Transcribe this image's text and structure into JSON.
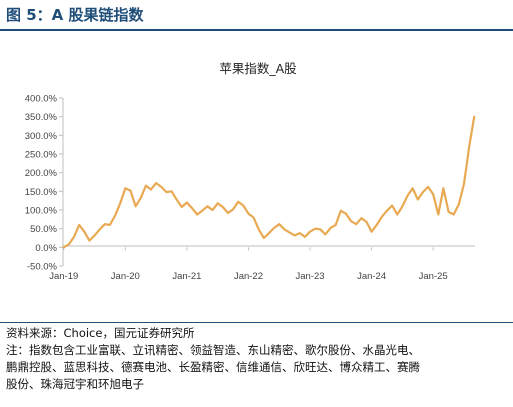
{
  "figure_label": "图 5：A 股果链指数",
  "source_text": "资料来源：Choice，国元证券研究所",
  "note_lines": [
    "注：指数包含工业富联、立讯精密、领益智造、东山精密、歌尔股份、水晶光电、",
    "鹏鼎控股、蓝思科技、德赛电池、长盈精密、信维通信、欣旺达、博众精工、赛腾",
    "股份、珠海冠宇和环旭电子"
  ],
  "colors": {
    "line": "#E8A952",
    "brand": "#1F4E79",
    "axis": "#BFBFBF"
  },
  "chart_data": {
    "type": "line",
    "title": "苹果指数_A股",
    "xlabel": "",
    "ylabel": "",
    "ylim": [
      -50,
      400
    ],
    "y_ticks": [
      -50,
      0,
      50,
      100,
      150,
      200,
      250,
      300,
      350,
      400
    ],
    "y_tick_labels": [
      "-50.0%",
      "0.0%",
      "50.0%",
      "100.0%",
      "150.0%",
      "200.0%",
      "250.0%",
      "300.0%",
      "350.0%",
      "400.0%"
    ],
    "xlim": [
      "2019-01",
      "2025-09"
    ],
    "x_tick_labels": [
      "Jan-19",
      "Jan-20",
      "Jan-21",
      "Jan-22",
      "Jan-23",
      "Jan-24",
      "Jan-25"
    ],
    "grid": false,
    "legend": "none",
    "series": [
      {
        "x": [
          "2019-01",
          "2019-02",
          "2019-03",
          "2019-04",
          "2019-05",
          "2019-06",
          "2019-07",
          "2019-08",
          "2019-09",
          "2019-10",
          "2019-11",
          "2019-12",
          "2020-01",
          "2020-02",
          "2020-03",
          "2020-04",
          "2020-05",
          "2020-06",
          "2020-07",
          "2020-08",
          "2020-09",
          "2020-10",
          "2020-11",
          "2020-12",
          "2021-01",
          "2021-02",
          "2021-03",
          "2021-04",
          "2021-05",
          "2021-06",
          "2021-07",
          "2021-08",
          "2021-09",
          "2021-10",
          "2021-11",
          "2021-12",
          "2022-01",
          "2022-02",
          "2022-03",
          "2022-04",
          "2022-05",
          "2022-06",
          "2022-07",
          "2022-08",
          "2022-09",
          "2022-10",
          "2022-11",
          "2022-12",
          "2023-01",
          "2023-02",
          "2023-03",
          "2023-04",
          "2023-05",
          "2023-06",
          "2023-07",
          "2023-08",
          "2023-09",
          "2023-10",
          "2023-11",
          "2023-12",
          "2024-01",
          "2024-02",
          "2024-03",
          "2024-04",
          "2024-05",
          "2024-06",
          "2024-07",
          "2024-08",
          "2024-09",
          "2024-10",
          "2024-11",
          "2024-12",
          "2025-01",
          "2025-02",
          "2025-03",
          "2025-04",
          "2025-05",
          "2025-06",
          "2025-07",
          "2025-08",
          "2025-09"
        ],
        "values": [
          0,
          8,
          28,
          60,
          42,
          18,
          32,
          48,
          62,
          60,
          85,
          118,
          158,
          152,
          110,
          132,
          165,
          155,
          172,
          162,
          148,
          150,
          128,
          108,
          120,
          105,
          88,
          98,
          110,
          100,
          118,
          108,
          92,
          102,
          122,
          112,
          90,
          80,
          48,
          25,
          38,
          52,
          62,
          48,
          40,
          32,
          38,
          28,
          42,
          50,
          48,
          35,
          52,
          60,
          98,
          90,
          70,
          62,
          78,
          68,
          42,
          60,
          82,
          98,
          112,
          88,
          110,
          138,
          158,
          128,
          148,
          162,
          142,
          88,
          158,
          95,
          88,
          115,
          170,
          268,
          350
        ]
      }
    ]
  }
}
